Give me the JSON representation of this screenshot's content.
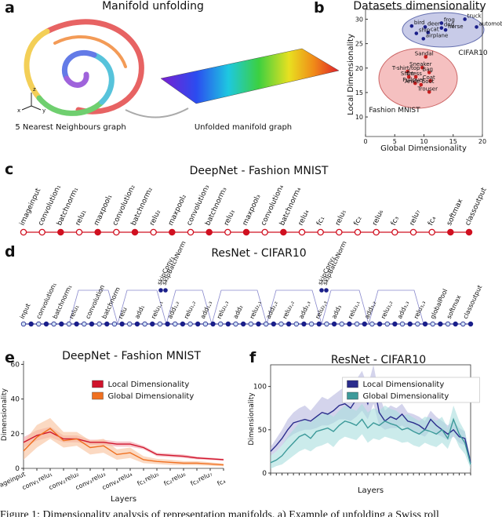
{
  "panel_labels": [
    "a",
    "b",
    "c",
    "d",
    "e",
    "f"
  ],
  "manifold": {
    "title": "Manifold unfolding",
    "left_caption": "5 Nearest Neighbours graph",
    "right_caption": "Unfolded manifold graph",
    "axes": [
      "x",
      "y",
      "z"
    ]
  },
  "deepnet": {
    "title": "DeepNet - Fashion MNIST",
    "layers": [
      "imageinput",
      "convolution₁",
      "batchnorm₁",
      "relu₁",
      "maxpool₁",
      "convolution₂",
      "batchnorm₂",
      "relu₂",
      "maxpool₂",
      "convolution₃",
      "batchnorm₃",
      "relu₃",
      "maxpool₃",
      "convolution₄",
      "batchnorm₄",
      "relu₄",
      "fc₁",
      "relu₅",
      "fc₂",
      "relu₆",
      "fc₃",
      "relu₇",
      "fc₄",
      "softmax",
      "classoutput"
    ]
  },
  "resnet": {
    "title": "ResNet - CIFAR10",
    "layers": [
      "input",
      "convolution₁",
      "batchnorm₁",
      "relu₁",
      "convolution",
      "batchnorm",
      "relu",
      "add₁",
      "relu₁,₁",
      "add₁,₂",
      "relu₁,₂",
      "add₁,₃",
      "relu₁,₃",
      "add₂",
      "relu₂,₁",
      "add₂,₂",
      "relu₂,₂",
      "add₂,₃",
      "relu₂,₃",
      "add₃",
      "relu₃,₁",
      "add₃,₂",
      "relu₃,₂",
      "add₃,₃",
      "relu₃,₃",
      "globalPool",
      "softmax",
      "classoutput"
    ],
    "skip_labels": [
      "skipConv₁",
      "skipBatchNorm",
      "skipConv₂",
      "skipBatchNorm"
    ]
  },
  "chart_data": [
    {
      "type": "scatter",
      "title": "Datasets dimensionality",
      "x_label": "Global Dimensionality",
      "y_label": "Local Dimensionality",
      "xlim": [
        0,
        20
      ],
      "xticks": [
        0,
        5,
        10,
        15,
        20
      ],
      "ylim": [
        6,
        32
      ],
      "yticks": [
        10,
        15,
        20,
        25,
        30
      ],
      "series": [
        {
          "name": "CIFAR10",
          "color": "#1a1f8a",
          "labels": [
            "truck",
            "frog",
            "deer",
            "bird",
            "dog",
            "horse",
            "cat",
            "ship",
            "airplane",
            "automobile"
          ],
          "x": [
            17.0,
            13.0,
            10.2,
            7.9,
            13.0,
            13.7,
            10.7,
            8.7,
            9.9,
            19.0
          ],
          "values": [
            30.0,
            29.2,
            28.4,
            28.6,
            28.2,
            27.8,
            27.3,
            27.1,
            26.0,
            28.4
          ]
        },
        {
          "name": "Fashion MNIST",
          "color": "#c81e1e",
          "labels": [
            "Sandal",
            "Sneaker",
            "Bag",
            "T-shirt/top",
            "Dress",
            "Shirt",
            "Coat",
            "Pullover",
            "Ankle boot",
            "Trouser"
          ],
          "x": [
            10.3,
            9.7,
            10.9,
            7.2,
            8.6,
            7.4,
            11.1,
            8.5,
            9.5,
            10.9
          ],
          "values": [
            22.3,
            20.1,
            19.1,
            19.3,
            18.2,
            18.2,
            17.4,
            16.9,
            16.6,
            15.1
          ]
        }
      ]
    },
    {
      "type": "line",
      "title": "DeepNet - Fashion MNIST",
      "x_label": "Layers",
      "y_label": "Dimensionality",
      "legend": "upper center",
      "categories": [
        "imageinput",
        "conv₁",
        "relu₁",
        "conv₂",
        "relu₂",
        "conv₃",
        "relu₃",
        "conv₄",
        "relu₄",
        "fc₁",
        "relu₅",
        "fc₂",
        "relu₆",
        "fc₃",
        "relu₇",
        "fc₄"
      ],
      "ylim": [
        0,
        62
      ],
      "yticks": [
        0,
        20,
        40,
        60
      ],
      "series": [
        {
          "name": "Local Dimensionality",
          "color": "#d0142c",
          "band_color": "#f2a0a8",
          "values": [
            15,
            19,
            21,
            17,
            17,
            15,
            15,
            14,
            14,
            12,
            8,
            7.5,
            7,
            6,
            5.5,
            5
          ],
          "lower": [
            12,
            16,
            18,
            15,
            15,
            13.5,
            13.5,
            12.5,
            12.5,
            11,
            7,
            6.5,
            6,
            5.2,
            4.8,
            4.4
          ],
          "upper": [
            18,
            22,
            24,
            19,
            19,
            16.5,
            16.5,
            15.5,
            15.5,
            13,
            9,
            8.5,
            8,
            6.8,
            6.2,
            5.6
          ]
        },
        {
          "name": "Global Dimensionality",
          "color": "#f07020",
          "band_color": "#f8c09a",
          "values": [
            10,
            18,
            23,
            16,
            17,
            12,
            13,
            8,
            9,
            5,
            4,
            3.5,
            3,
            3,
            2.5,
            2
          ],
          "lower": [
            5,
            12,
            17,
            12,
            13,
            8,
            9,
            5,
            6,
            3,
            2.5,
            2,
            1.8,
            1.8,
            1.5,
            1.2
          ],
          "upper": [
            15,
            25,
            29,
            21,
            21,
            16,
            17,
            11,
            12,
            7,
            5.5,
            5,
            4.2,
            4.2,
            3.5,
            2.8
          ]
        }
      ]
    },
    {
      "type": "line",
      "title": "ResNet - CIFAR10",
      "x_label": "Layers",
      "y_label": "Dimensionality",
      "legend": "upper center",
      "frame": true,
      "categories": [
        null,
        null,
        null,
        null,
        null,
        null,
        null,
        null,
        null,
        null,
        null,
        null,
        null,
        null,
        null,
        null,
        null,
        null,
        null,
        null,
        null,
        null,
        null,
        null,
        null,
        null,
        null,
        null,
        null,
        null,
        null,
        null,
        null,
        null,
        null,
        null
      ],
      "ylim": [
        0,
        125
      ],
      "yticks": [
        0,
        50,
        100
      ],
      "series": [
        {
          "name": "Local Dimensionality",
          "color": "#2a2c8c",
          "band_color": "#b8b8e0",
          "values": [
            25,
            32,
            40,
            50,
            58,
            60,
            62,
            60,
            65,
            70,
            68,
            72,
            78,
            80,
            75,
            85,
            95,
            80,
            105,
            70,
            60,
            65,
            62,
            68,
            60,
            58,
            55,
            50,
            62,
            55,
            50,
            45,
            50,
            42,
            40,
            12
          ],
          "lower": [
            20,
            25,
            32,
            40,
            45,
            48,
            50,
            50,
            52,
            55,
            55,
            58,
            62,
            62,
            60,
            65,
            72,
            62,
            80,
            55,
            50,
            52,
            52,
            55,
            50,
            48,
            45,
            42,
            50,
            45,
            42,
            38,
            42,
            35,
            32,
            8
          ],
          "upper": [
            30,
            40,
            50,
            62,
            70,
            75,
            78,
            72,
            80,
            88,
            85,
            90,
            95,
            100,
            92,
            108,
            118,
            100,
            125,
            90,
            72,
            78,
            75,
            80,
            70,
            68,
            65,
            60,
            72,
            65,
            60,
            55,
            60,
            52,
            48,
            16
          ]
        },
        {
          "name": "Global Dimensionality",
          "color": "#3d9a9a",
          "band_color": "#a8dede",
          "values": [
            12,
            15,
            20,
            28,
            35,
            42,
            45,
            40,
            48,
            50,
            52,
            48,
            55,
            60,
            58,
            55,
            62,
            52,
            58,
            55,
            60,
            57,
            55,
            50,
            52,
            48,
            45,
            50,
            48,
            45,
            50,
            40,
            62,
            45,
            35,
            10
          ],
          "lower": [
            5,
            8,
            10,
            15,
            20,
            25,
            28,
            25,
            30,
            32,
            35,
            30,
            38,
            42,
            40,
            38,
            45,
            35,
            40,
            38,
            42,
            40,
            38,
            35,
            36,
            32,
            30,
            35,
            32,
            30,
            35,
            28,
            45,
            30,
            22,
            5
          ],
          "upper": [
            20,
            25,
            32,
            42,
            50,
            58,
            62,
            58,
            65,
            68,
            70,
            65,
            72,
            78,
            75,
            72,
            80,
            70,
            75,
            72,
            78,
            74,
            72,
            66,
            68,
            64,
            60,
            65,
            64,
            60,
            65,
            52,
            78,
            60,
            48,
            16
          ]
        }
      ]
    }
  ],
  "caption": "Figure 1: Dimensionality analysis of representation manifolds. a) Example of unfolding a Swiss roll"
}
